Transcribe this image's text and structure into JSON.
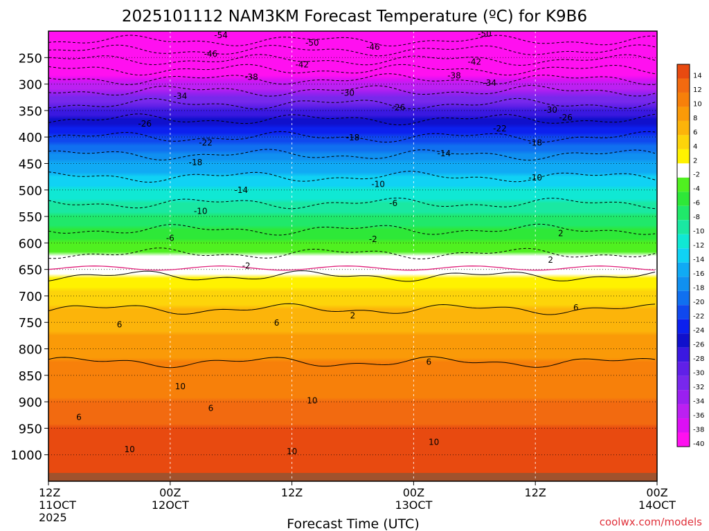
{
  "chart_data": {
    "type": "heatmap",
    "title": "2025101112 NAM3KM Forecast Temperature (ºC) for K9B6",
    "xlabel": "Forecast Time (UTC)",
    "ylabel": "",
    "credit": "coolwx.com/models",
    "x_range_hours": [
      0,
      60
    ],
    "y_range_hPa": [
      1050,
      200
    ],
    "y_ticks": [
      250,
      300,
      350,
      400,
      450,
      500,
      550,
      600,
      650,
      700,
      750,
      800,
      850,
      900,
      950,
      1000
    ],
    "x_ticks": [
      {
        "hour": 0,
        "top": "12Z",
        "middle": "11OCT",
        "bottom": "2025"
      },
      {
        "hour": 12,
        "top": "00Z",
        "middle": "12OCT",
        "bottom": ""
      },
      {
        "hour": 24,
        "top": "12Z",
        "middle": "",
        "bottom": ""
      },
      {
        "hour": 36,
        "top": "00Z",
        "middle": "13OCT",
        "bottom": ""
      },
      {
        "hour": 48,
        "top": "12Z",
        "middle": "",
        "bottom": ""
      },
      {
        "hour": 60,
        "top": "00Z",
        "middle": "14OCT",
        "bottom": ""
      }
    ],
    "colorbar": {
      "levels": [
        "14",
        "12",
        "10",
        "8",
        "6",
        "4",
        "2",
        "-2",
        "-4",
        "-6",
        "-8",
        "-10",
        "-12",
        "-14",
        "-16",
        "-18",
        "-20",
        "-22",
        "-24",
        "-26",
        "-28",
        "-30",
        "-32",
        "-34",
        "-36",
        "-38",
        "-40"
      ],
      "colors": [
        "#e84a10",
        "#f26a10",
        "#f7800a",
        "#fa9a08",
        "#fcb40a",
        "#fdd40a",
        "#fff200",
        "#ffffff",
        "#50f020",
        "#2ee838",
        "#20e86a",
        "#1ae8a2",
        "#10e8d4",
        "#10d2f4",
        "#10aaf4",
        "#1090f0",
        "#1070f0",
        "#1048ee",
        "#0c20ee",
        "#1010cc",
        "#3a18e0",
        "#6020e8",
        "#7828ec",
        "#9a20f0",
        "#bc20f2",
        "#dc10f4",
        "#ff10f0"
      ]
    },
    "temperature_profile": [
      {
        "p": 200,
        "t": -58
      },
      {
        "p": 250,
        "t": -47
      },
      {
        "p": 300,
        "t": -36
      },
      {
        "p": 350,
        "t": -28
      },
      {
        "p": 400,
        "t": -22
      },
      {
        "p": 450,
        "t": -16
      },
      {
        "p": 500,
        "t": -12
      },
      {
        "p": 550,
        "t": -8
      },
      {
        "p": 600,
        "t": -4
      },
      {
        "p": 650,
        "t": 1
      },
      {
        "p": 700,
        "t": 5
      },
      {
        "p": 750,
        "t": 7
      },
      {
        "p": 800,
        "t": 9
      },
      {
        "p": 850,
        "t": 11
      },
      {
        "p": 900,
        "t": 12
      },
      {
        "p": 950,
        "t": 14
      },
      {
        "p": 1000,
        "t": 15
      },
      {
        "p": 1050,
        "t": 16
      }
    ],
    "contour_labels": [
      {
        "text": "-54",
        "hour": 17.0,
        "p": 208
      },
      {
        "text": "-50",
        "hour": 26.0,
        "p": 222
      },
      {
        "text": "-50",
        "hour": 43.0,
        "p": 205
      },
      {
        "text": "-46",
        "hour": 16.0,
        "p": 243
      },
      {
        "text": "-46",
        "hour": 32.0,
        "p": 230
      },
      {
        "text": "-42",
        "hour": 25.0,
        "p": 263
      },
      {
        "text": "-42",
        "hour": 42.0,
        "p": 258
      },
      {
        "text": "-38",
        "hour": 20.0,
        "p": 287
      },
      {
        "text": "-38",
        "hour": 40.0,
        "p": 284
      },
      {
        "text": "-34",
        "hour": 13.0,
        "p": 323
      },
      {
        "text": "-34",
        "hour": 43.5,
        "p": 298
      },
      {
        "text": "-30",
        "hour": 29.5,
        "p": 317
      },
      {
        "text": "-30",
        "hour": 49.5,
        "p": 349
      },
      {
        "text": "-26",
        "hour": 9.5,
        "p": 375
      },
      {
        "text": "-26",
        "hour": 34.5,
        "p": 344
      },
      {
        "text": "-26",
        "hour": 51.0,
        "p": 363
      },
      {
        "text": "-22",
        "hour": 15.5,
        "p": 411
      },
      {
        "text": "-22",
        "hour": 44.5,
        "p": 384
      },
      {
        "text": "-18",
        "hour": 14.5,
        "p": 448
      },
      {
        "text": "-18",
        "hour": 30.0,
        "p": 401
      },
      {
        "text": "-18",
        "hour": 48.0,
        "p": 411
      },
      {
        "text": "-14",
        "hour": 19.0,
        "p": 500
      },
      {
        "text": "-14",
        "hour": 39.0,
        "p": 431
      },
      {
        "text": "-10",
        "hour": 15.0,
        "p": 540
      },
      {
        "text": "-10",
        "hour": 32.5,
        "p": 489
      },
      {
        "text": "-10",
        "hour": 48.0,
        "p": 477
      },
      {
        "text": "-6",
        "hour": 12.0,
        "p": 591
      },
      {
        "text": "-6",
        "hour": 34.0,
        "p": 525
      },
      {
        "text": "-2",
        "hour": 19.5,
        "p": 643
      },
      {
        "text": "-2",
        "hour": 32.0,
        "p": 593
      },
      {
        "text": "2",
        "hour": 50.5,
        "p": 582
      },
      {
        "text": "2",
        "hour": 49.5,
        "p": 632
      },
      {
        "text": "2",
        "hour": 30.0,
        "p": 737
      },
      {
        "text": "6",
        "hour": 7.0,
        "p": 754
      },
      {
        "text": "6",
        "hour": 22.5,
        "p": 751
      },
      {
        "text": "6",
        "hour": 52.0,
        "p": 722
      },
      {
        "text": "6",
        "hour": 37.5,
        "p": 825
      },
      {
        "text": "6",
        "hour": 16.0,
        "p": 912
      },
      {
        "text": "6",
        "hour": 3.0,
        "p": 929
      },
      {
        "text": "10",
        "hour": 13.0,
        "p": 871
      },
      {
        "text": "10",
        "hour": 26.0,
        "p": 898
      },
      {
        "text": "10",
        "hour": 8.0,
        "p": 990
      },
      {
        "text": "10",
        "hour": 24.0,
        "p": 994
      },
      {
        "text": "10",
        "hour": 38.0,
        "p": 976
      }
    ]
  }
}
